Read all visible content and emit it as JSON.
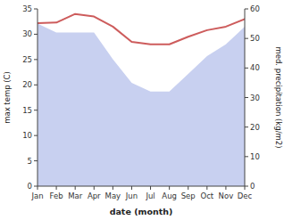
{
  "chart_data": {
    "type": "line",
    "xlabel": "date (month)",
    "ylabel": "max temp (C)",
    "y2label": "med. precipitation (kg/m2)",
    "categories": [
      "Jan",
      "Feb",
      "Mar",
      "Apr",
      "May",
      "Jun",
      "Jul",
      "Aug",
      "Sep",
      "Oct",
      "Nov",
      "Dec"
    ],
    "series": [
      {
        "type": "area",
        "axis": "y2",
        "color": "#c8d0f0",
        "values": [
          55.0,
          52.0,
          52.0,
          52.0,
          43.0,
          35.0,
          32.0,
          32.0,
          38.0,
          44.0,
          48.0,
          54.0
        ]
      },
      {
        "type": "line",
        "color": "#cd5c5c",
        "values": [
          32.2,
          32.3,
          34.0,
          33.5,
          31.5,
          28.5,
          28.0,
          28.0,
          29.5,
          30.8,
          31.5,
          33.0
        ]
      }
    ],
    "ylim": [
      0,
      35
    ],
    "yticks": [
      0,
      5,
      10,
      15,
      20,
      25,
      30,
      35
    ],
    "y2lim": [
      0,
      60
    ],
    "y2ticks": [
      0,
      10,
      20,
      30,
      40,
      50,
      60
    ],
    "grid": false
  }
}
